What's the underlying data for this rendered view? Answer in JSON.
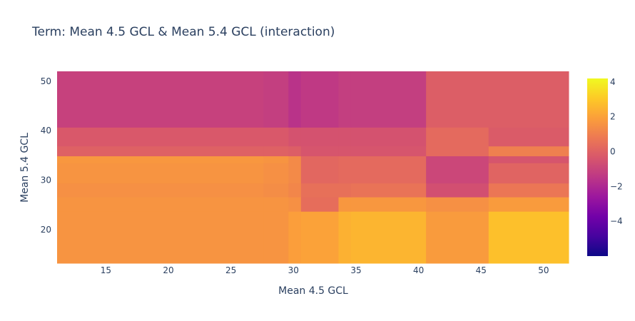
{
  "chart_data": {
    "type": "heatmap",
    "title": "Term: Mean 4.5 GCL & Mean 5.4 GCL (interaction)",
    "xlabel": "Mean 4.5 GCL",
    "ylabel": "Mean 5.4 GCL",
    "xlim": [
      11.1,
      52.0
    ],
    "ylim": [
      13.2,
      52.0
    ],
    "x_ticks": [
      15,
      20,
      25,
      30,
      35,
      40,
      45,
      50
    ],
    "y_ticks": [
      20,
      30,
      40,
      50
    ],
    "x_edges": [
      11.1,
      27.6,
      29.6,
      30.6,
      33.6,
      34.6,
      40.6,
      45.6,
      52.0
    ],
    "y_edges": [
      13.2,
      23.7,
      26.6,
      29.4,
      33.5,
      34.9,
      36.9,
      40.7,
      52.0
    ],
    "z": [
      [
        1.6,
        1.6,
        1.9,
        2.0,
        2.4,
        2.5,
        1.8,
        2.8
      ],
      [
        1.6,
        1.6,
        1.5,
        0.4,
        1.7,
        1.7,
        1.5,
        1.8
      ],
      [
        1.5,
        1.4,
        1.2,
        0.5,
        0.5,
        0.6,
        -0.6,
        0.7
      ],
      [
        1.6,
        1.5,
        1.3,
        0.2,
        0.3,
        0.3,
        -0.9,
        0.1
      ],
      [
        1.7,
        1.6,
        1.3,
        0.2,
        0.3,
        0.3,
        -0.9,
        -0.4
      ],
      [
        0.0,
        0.0,
        -0.1,
        -0.4,
        -0.4,
        -0.4,
        0.3,
        1.0
      ],
      [
        -0.3,
        -0.3,
        -0.5,
        -0.5,
        -0.5,
        -0.5,
        0.3,
        -0.2
      ],
      [
        -1.1,
        -1.2,
        -1.6,
        -1.4,
        -1.2,
        -1.2,
        -0.1,
        -0.1
      ]
    ],
    "colorbar": {
      "range": [
        -6,
        4.2
      ],
      "ticks": [
        4,
        2,
        0,
        -2,
        -4
      ],
      "tick_labels": [
        "4",
        "2",
        "0",
        "−2",
        "−4"
      ]
    },
    "colorscale": [
      "#0d0887",
      "#46039f",
      "#7201a8",
      "#9c179e",
      "#bd3786",
      "#d8576b",
      "#ed7953",
      "#fb9f3a",
      "#fdca26",
      "#f0f921"
    ],
    "text_color": "#2a3f5f"
  }
}
